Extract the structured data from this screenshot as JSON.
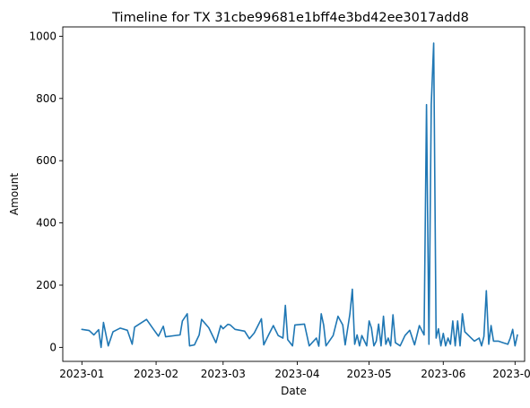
{
  "chart_data": {
    "type": "line",
    "title": "Timeline for TX 31cbe99681e1bff4e3bd42ee3017add8",
    "xlabel": "Date",
    "ylabel": "Amount",
    "xlim": [
      "2022-12-24",
      "2023-07-05"
    ],
    "ylim": [
      -45,
      1030
    ],
    "x_ticks": [
      {
        "date": "2023-01-01",
        "label": "2023-01"
      },
      {
        "date": "2023-02-01",
        "label": "2023-02"
      },
      {
        "date": "2023-03-01",
        "label": "2023-03"
      },
      {
        "date": "2023-04-01",
        "label": "2023-04"
      },
      {
        "date": "2023-05-01",
        "label": "2023-05"
      },
      {
        "date": "2023-06-01",
        "label": "2023-06"
      },
      {
        "date": "2023-07-01",
        "label": "2023-07"
      }
    ],
    "y_ticks": [
      {
        "value": 0,
        "label": "0"
      },
      {
        "value": 200,
        "label": "200"
      },
      {
        "value": 400,
        "label": "400"
      },
      {
        "value": 600,
        "label": "600"
      },
      {
        "value": 800,
        "label": "800"
      },
      {
        "value": 1000,
        "label": "1000"
      }
    ],
    "series": [
      {
        "name": "Amount",
        "color": "#1f77b4",
        "points": [
          [
            "2023-01-01",
            58
          ],
          [
            "2023-01-04",
            54
          ],
          [
            "2023-01-06",
            40
          ],
          [
            "2023-01-08",
            57
          ],
          [
            "2023-01-09",
            0
          ],
          [
            "2023-01-10",
            80
          ],
          [
            "2023-01-12",
            5
          ],
          [
            "2023-01-14",
            50
          ],
          [
            "2023-01-17",
            62
          ],
          [
            "2023-01-20",
            55
          ],
          [
            "2023-01-22",
            10
          ],
          [
            "2023-01-23",
            65
          ],
          [
            "2023-01-28",
            90
          ],
          [
            "2023-01-31",
            57
          ],
          [
            "2023-02-02",
            36
          ],
          [
            "2023-02-04",
            68
          ],
          [
            "2023-02-05",
            34
          ],
          [
            "2023-02-11",
            40
          ],
          [
            "2023-02-12",
            85
          ],
          [
            "2023-02-14",
            108
          ],
          [
            "2023-02-15",
            5
          ],
          [
            "2023-02-17",
            8
          ],
          [
            "2023-02-19",
            40
          ],
          [
            "2023-02-20",
            90
          ],
          [
            "2023-02-23",
            63
          ],
          [
            "2023-02-26",
            15
          ],
          [
            "2023-02-28",
            70
          ],
          [
            "2023-03-01",
            60
          ],
          [
            "2023-03-03",
            74
          ],
          [
            "2023-03-04",
            72
          ],
          [
            "2023-03-06",
            58
          ],
          [
            "2023-03-10",
            52
          ],
          [
            "2023-03-12",
            28
          ],
          [
            "2023-03-14",
            46
          ],
          [
            "2023-03-17",
            92
          ],
          [
            "2023-03-18",
            8
          ],
          [
            "2023-03-20",
            40
          ],
          [
            "2023-03-22",
            70
          ],
          [
            "2023-03-24",
            38
          ],
          [
            "2023-03-26",
            30
          ],
          [
            "2023-03-27",
            135
          ],
          [
            "2023-03-28",
            25
          ],
          [
            "2023-03-30",
            5
          ],
          [
            "2023-03-31",
            72
          ],
          [
            "2023-04-04",
            75
          ],
          [
            "2023-04-06",
            5
          ],
          [
            "2023-04-09",
            30
          ],
          [
            "2023-04-10",
            4
          ],
          [
            "2023-04-11",
            108
          ],
          [
            "2023-04-12",
            72
          ],
          [
            "2023-04-13",
            5
          ],
          [
            "2023-04-16",
            38
          ],
          [
            "2023-04-18",
            100
          ],
          [
            "2023-04-20",
            72
          ],
          [
            "2023-04-21",
            8
          ],
          [
            "2023-04-23",
            108
          ],
          [
            "2023-04-24",
            187
          ],
          [
            "2023-04-25",
            10
          ],
          [
            "2023-04-26",
            40
          ],
          [
            "2023-04-27",
            5
          ],
          [
            "2023-04-28",
            38
          ],
          [
            "2023-04-30",
            5
          ],
          [
            "2023-05-01",
            85
          ],
          [
            "2023-05-02",
            62
          ],
          [
            "2023-05-03",
            5
          ],
          [
            "2023-05-04",
            20
          ],
          [
            "2023-05-05",
            75
          ],
          [
            "2023-05-06",
            5
          ],
          [
            "2023-05-07",
            100
          ],
          [
            "2023-05-08",
            10
          ],
          [
            "2023-05-09",
            30
          ],
          [
            "2023-05-10",
            5
          ],
          [
            "2023-05-11",
            105
          ],
          [
            "2023-05-12",
            15
          ],
          [
            "2023-05-14",
            5
          ],
          [
            "2023-05-16",
            38
          ],
          [
            "2023-05-18",
            55
          ],
          [
            "2023-05-20",
            8
          ],
          [
            "2023-05-22",
            70
          ],
          [
            "2023-05-24",
            40
          ],
          [
            "2023-05-25",
            780
          ],
          [
            "2023-05-26",
            10
          ],
          [
            "2023-05-27",
            780
          ],
          [
            "2023-05-28",
            978
          ],
          [
            "2023-05-29",
            30
          ],
          [
            "2023-05-30",
            60
          ],
          [
            "2023-05-31",
            5
          ],
          [
            "2023-06-01",
            45
          ],
          [
            "2023-06-02",
            5
          ],
          [
            "2023-06-03",
            30
          ],
          [
            "2023-06-04",
            10
          ],
          [
            "2023-06-05",
            85
          ],
          [
            "2023-06-06",
            5
          ],
          [
            "2023-06-07",
            85
          ],
          [
            "2023-06-08",
            5
          ],
          [
            "2023-06-09",
            108
          ],
          [
            "2023-06-10",
            50
          ],
          [
            "2023-06-12",
            35
          ],
          [
            "2023-06-14",
            20
          ],
          [
            "2023-06-16",
            30
          ],
          [
            "2023-06-17",
            5
          ],
          [
            "2023-06-18",
            35
          ],
          [
            "2023-06-19",
            182
          ],
          [
            "2023-06-20",
            10
          ],
          [
            "2023-06-21",
            70
          ],
          [
            "2023-06-22",
            20
          ],
          [
            "2023-06-24",
            20
          ],
          [
            "2023-06-26",
            15
          ],
          [
            "2023-06-28",
            10
          ],
          [
            "2023-06-29",
            30
          ],
          [
            "2023-06-30",
            58
          ],
          [
            "2023-07-01",
            5
          ],
          [
            "2023-07-02",
            40
          ]
        ]
      }
    ]
  }
}
